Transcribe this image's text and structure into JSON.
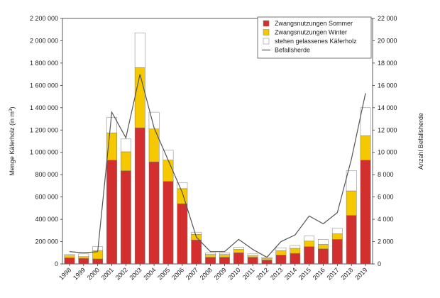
{
  "chart_data": {
    "type": "bar",
    "stacked": true,
    "categories": [
      "1998",
      "1999",
      "2000",
      "2001",
      "2002",
      "2003",
      "2004",
      "2005",
      "2006",
      "2007",
      "2008",
      "2009",
      "2010",
      "2011",
      "2012",
      "2013",
      "2014",
      "2015",
      "2016",
      "2017",
      "2018",
      "2019"
    ],
    "series": [
      {
        "name": "Zwangsnutzungen Sommer",
        "color": "#d32f2f",
        "axis": "left",
        "values": [
          55000,
          50000,
          45000,
          930000,
          835000,
          1220000,
          915000,
          740000,
          540000,
          215000,
          60000,
          60000,
          100000,
          60000,
          35000,
          80000,
          95000,
          155000,
          135000,
          220000,
          435000,
          930000
        ]
      },
      {
        "name": "Zwangsnutzungen Winter",
        "color": "#f5c800",
        "axis": "left",
        "values": [
          20000,
          15000,
          75000,
          245000,
          170000,
          540000,
          295000,
          190000,
          135000,
          50000,
          25000,
          25000,
          30000,
          15000,
          15000,
          40000,
          45000,
          50000,
          40000,
          50000,
          220000,
          220000
        ]
      },
      {
        "name": "stehen gelassenes Käferholz",
        "color": "#ffffff",
        "axis": "left",
        "values": [
          10000,
          25000,
          35000,
          140000,
          115000,
          310000,
          150000,
          90000,
          55000,
          20000,
          15000,
          15000,
          20000,
          15000,
          10000,
          25000,
          25000,
          45000,
          45000,
          50000,
          180000,
          250000
        ]
      },
      {
        "name": "Befallsherde",
        "type": "line",
        "color": "#555555",
        "axis": "right",
        "values": [
          1100,
          1000,
          1100,
          13600,
          11300,
          17000,
          12200,
          9300,
          6400,
          2400,
          1100,
          1100,
          2200,
          1300,
          600,
          2000,
          2600,
          4300,
          3600,
          4600,
          9400,
          15300
        ]
      }
    ],
    "ylabel": "Menge Käferholz (in m³)",
    "ylabel_prefix": "Menge Käferholz (in m",
    "ylabel_sup": "3",
    "ylabel_suffix": ")",
    "y2label": "Anzahl Befallsherde",
    "ylim": [
      0,
      2200000
    ],
    "y2lim": [
      0,
      22000
    ],
    "yticks": [
      "0",
      "200 000",
      "400 000",
      "600 000",
      "800 000",
      "1 000 000",
      "1 200 000",
      "1 400 000",
      "1 600 000",
      "1 800 000",
      "2 000 000",
      "2 200 000"
    ],
    "y2ticks": [
      "0",
      "2 000",
      "4 000",
      "6 000",
      "8 000",
      "10 000",
      "12 000",
      "14 000",
      "16 000",
      "18 000",
      "20 000",
      "22 000"
    ],
    "grid": false,
    "legend_position": "top-right"
  }
}
